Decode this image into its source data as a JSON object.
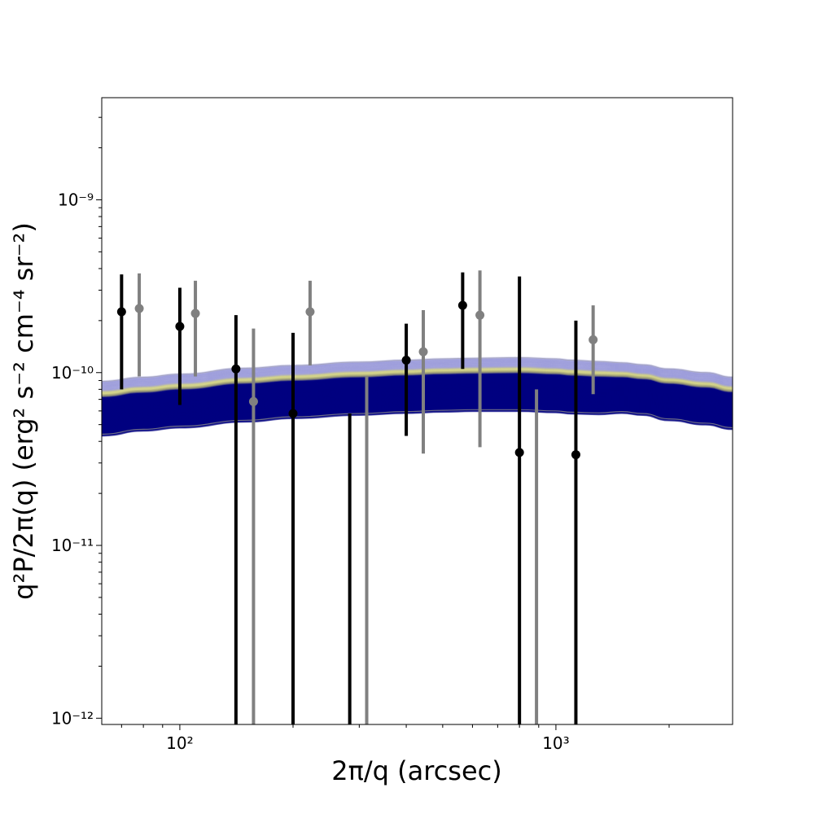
{
  "chart_data": {
    "type": "scatter",
    "title": "",
    "xlabel": "2π/q (arcsec)",
    "ylabel": "q²P/2π(q) (erg² s⁻² cm⁻⁴ sr⁻²)",
    "xscale": "log",
    "yscale": "log",
    "xlim": [
      62,
      2950
    ],
    "ylim": [
      9.2e-13,
      3.9e-09
    ],
    "xticks": [
      {
        "value": 100,
        "label": "10²"
      },
      {
        "value": 1000,
        "label": "10³"
      }
    ],
    "yticks": [
      {
        "value": 1e-09,
        "label": "10⁻⁹"
      },
      {
        "value": 1e-10,
        "label": "10⁻¹⁰"
      },
      {
        "value": 1e-11,
        "label": "10⁻¹¹"
      },
      {
        "value": 1e-12,
        "label": "10⁻¹²"
      }
    ],
    "grid": false,
    "legend": "none",
    "colors": {
      "band_main": "#000080",
      "band_blue": "#7777cc",
      "band_yellow": "#c8c870",
      "band_gray": "#888888",
      "series_black": "#000000",
      "series_gray": "#808080"
    },
    "model_band": {
      "x": [
        62,
        80,
        100,
        150,
        200,
        300,
        400,
        500,
        600,
        800,
        1000,
        1100,
        1300,
        1500,
        1700,
        2000,
        2500,
        2950
      ],
      "lower": [
        4.4e-11,
        4.7e-11,
        4.9e-11,
        5.3e-11,
        5.55e-11,
        5.8e-11,
        5.95e-11,
        6.05e-11,
        6.1e-11,
        6.1e-11,
        6e-11,
        5.9e-11,
        5.85e-11,
        5.95e-11,
        5.8e-11,
        5.4e-11,
        5.1e-11,
        4.8e-11
      ],
      "upper": [
        8.9e-11,
        9.4e-11,
        9.8e-11,
        1.06e-10,
        1.1e-10,
        1.15e-10,
        1.18e-10,
        1.2e-10,
        1.21e-10,
        1.22e-10,
        1.2e-10,
        1.18e-10,
        1.16e-10,
        1.14e-10,
        1.11e-10,
        1.05e-10,
        1e-10,
        9.4e-11
      ],
      "median": [
        6.1e-11,
        6.5e-11,
        6.8e-11,
        7.4e-11,
        7.8e-11,
        8.2e-11,
        8.5e-11,
        8.6e-11,
        8.7e-11,
        8.7e-11,
        8.6e-11,
        8.4e-11,
        8.3e-11,
        8.3e-11,
        8.1e-11,
        7.6e-11,
        7.2e-11,
        6.7e-11
      ]
    },
    "series": [
      {
        "color": "#000000",
        "points": [
          {
            "x": 70,
            "y": 2.25e-10,
            "ylo": 8e-11,
            "yhi": 3.7e-10
          },
          {
            "x": 100,
            "y": 1.85e-10,
            "ylo": 6.5e-11,
            "yhi": 3.1e-10
          },
          {
            "x": 141,
            "y": 1.05e-10,
            "ylo": 9.2e-13,
            "yhi": 2.15e-10
          },
          {
            "x": 200,
            "y": 5.8e-11,
            "ylo": 9.2e-13,
            "yhi": 1.7e-10
          },
          {
            "x": 283,
            "y": null,
            "ylo": 9.2e-13,
            "yhi": 5.8e-11
          },
          {
            "x": 400,
            "y": 1.18e-10,
            "ylo": 4.3e-11,
            "yhi": 1.92e-10
          },
          {
            "x": 565,
            "y": 2.45e-10,
            "ylo": 1.05e-10,
            "yhi": 3.8e-10
          },
          {
            "x": 800,
            "y": 3.45e-11,
            "ylo": 9.2e-13,
            "yhi": 3.6e-10
          },
          {
            "x": 1130,
            "y": 3.35e-11,
            "ylo": 9.2e-13,
            "yhi": 2e-10
          }
        ]
      },
      {
        "color": "#808080",
        "points": [
          {
            "x": 78,
            "y": 2.35e-10,
            "ylo": 9.5e-11,
            "yhi": 3.75e-10
          },
          {
            "x": 110,
            "y": 2.2e-10,
            "ylo": 9.5e-11,
            "yhi": 3.4e-10
          },
          {
            "x": 157,
            "y": 6.8e-11,
            "ylo": 9.2e-13,
            "yhi": 1.8e-10
          },
          {
            "x": 222,
            "y": 2.25e-10,
            "ylo": 1.1e-10,
            "yhi": 3.4e-10
          },
          {
            "x": 314,
            "y": null,
            "ylo": 9.2e-13,
            "yhi": 9.5e-11
          },
          {
            "x": 444,
            "y": 1.32e-10,
            "ylo": 3.4e-11,
            "yhi": 2.3e-10
          },
          {
            "x": 628,
            "y": 2.15e-10,
            "ylo": 3.7e-11,
            "yhi": 3.9e-10
          },
          {
            "x": 888,
            "y": null,
            "ylo": 9.2e-13,
            "yhi": 8e-11
          },
          {
            "x": 1256,
            "y": 1.55e-10,
            "ylo": 7.5e-11,
            "yhi": 2.45e-10
          }
        ]
      }
    ]
  }
}
